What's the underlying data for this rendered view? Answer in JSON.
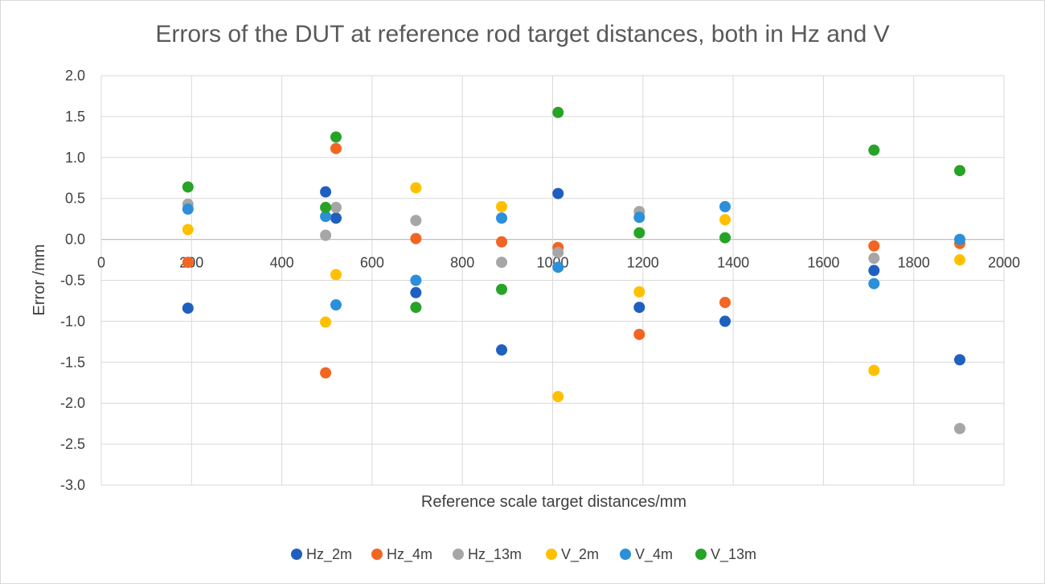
{
  "chart_data": {
    "type": "scatter",
    "title": "Errors of the DUT at reference rod target distances, both in Hz and V",
    "xlabel": "Reference scale target distances/mm",
    "ylabel": "Error /mm",
    "xlim": [
      0,
      2000
    ],
    "ylim": [
      -3.0,
      2.0
    ],
    "x_ticks": [
      "0",
      "200",
      "400",
      "600",
      "800",
      "1000",
      "1200",
      "1400",
      "1600",
      "1800",
      "2000"
    ],
    "y_ticks": [
      "2.0",
      "1.5",
      "1.0",
      "0.5",
      "0.0",
      "-0.5",
      "-1.0",
      "-1.5",
      "-2.0",
      "-2.5",
      "-3.0"
    ],
    "grid": true,
    "legend_position": "bottom",
    "series": [
      {
        "name": "Hz_2m",
        "color": "#1f5fbf",
        "points": [
          [
            192,
            -0.84
          ],
          [
            497,
            0.58
          ],
          [
            520,
            0.26
          ],
          [
            697,
            -0.65
          ],
          [
            887,
            -1.35
          ],
          [
            1012,
            0.56
          ],
          [
            1192,
            -0.83
          ],
          [
            1382,
            -1.0
          ],
          [
            1712,
            -0.38
          ],
          [
            1902,
            -1.47
          ]
        ]
      },
      {
        "name": "Hz_4m",
        "color": "#f26522",
        "points": [
          [
            192,
            -0.28
          ],
          [
            497,
            -1.63
          ],
          [
            520,
            1.11
          ],
          [
            697,
            0.01
          ],
          [
            887,
            -0.03
          ],
          [
            1012,
            -0.1
          ],
          [
            1192,
            -1.16
          ],
          [
            1382,
            -0.77
          ],
          [
            1712,
            -0.08
          ],
          [
            1902,
            -0.05
          ]
        ]
      },
      {
        "name": "Hz_13m",
        "color": "#a6a6a6",
        "points": [
          [
            192,
            0.43
          ],
          [
            497,
            0.05
          ],
          [
            520,
            0.39
          ],
          [
            697,
            0.23
          ],
          [
            887,
            -0.28
          ],
          [
            1012,
            -0.16
          ],
          [
            1192,
            0.34
          ],
          [
            1712,
            -0.23
          ],
          [
            1902,
            -2.31
          ]
        ]
      },
      {
        "name": "V_2m",
        "color": "#ffc000",
        "points": [
          [
            192,
            0.12
          ],
          [
            497,
            -1.01
          ],
          [
            520,
            -0.43
          ],
          [
            697,
            0.63
          ],
          [
            887,
            0.4
          ],
          [
            1012,
            -1.92
          ],
          [
            1192,
            -0.64
          ],
          [
            1382,
            0.24
          ],
          [
            1712,
            -1.6
          ],
          [
            1902,
            -0.25
          ]
        ]
      },
      {
        "name": "V_4m",
        "color": "#2b8fd9",
        "points": [
          [
            192,
            0.37
          ],
          [
            497,
            0.28
          ],
          [
            520,
            -0.8
          ],
          [
            697,
            -0.5
          ],
          [
            887,
            0.26
          ],
          [
            1012,
            -0.34
          ],
          [
            1192,
            0.27
          ],
          [
            1382,
            0.4
          ],
          [
            1712,
            -0.54
          ],
          [
            1902,
            0.0
          ]
        ]
      },
      {
        "name": "V_13m",
        "color": "#27a327",
        "points": [
          [
            192,
            0.64
          ],
          [
            497,
            0.39
          ],
          [
            520,
            1.25
          ],
          [
            697,
            -0.83
          ],
          [
            887,
            -0.61
          ],
          [
            1012,
            1.55
          ],
          [
            1192,
            0.08
          ],
          [
            1382,
            0.02
          ],
          [
            1712,
            1.09
          ],
          [
            1902,
            0.84
          ]
        ]
      }
    ]
  }
}
